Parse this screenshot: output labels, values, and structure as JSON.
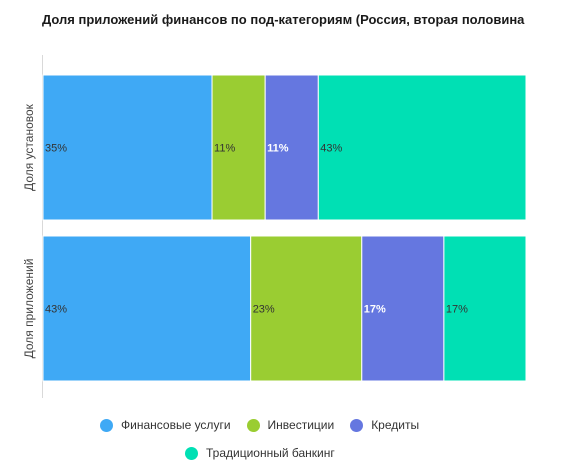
{
  "chart_data": {
    "type": "bar",
    "orientation": "horizontal",
    "stacked": "percent",
    "title": "Доля приложений финансов по под-категориям (Россия, вторая половина",
    "categories": [
      "Доля установок",
      "Доля приложений"
    ],
    "series": [
      {
        "name": "Финансовые услуги",
        "color": "#3fa9f5",
        "values": [
          35,
          43
        ],
        "labels": [
          "35%",
          "43%"
        ]
      },
      {
        "name": "Инвестиции",
        "color": "#9acd32",
        "values": [
          11,
          23
        ],
        "labels": [
          "11%",
          "23%"
        ]
      },
      {
        "name": "Кредиты",
        "color": "#6577e0",
        "values": [
          11,
          17
        ],
        "labels": [
          "11%",
          "17%"
        ]
      },
      {
        "name": "Традиционный банкинг",
        "color": "#00e0b4",
        "values": [
          43,
          17
        ],
        "labels": [
          "43%",
          "17%"
        ]
      }
    ],
    "xlim": [
      0,
      100
    ],
    "grid": false,
    "legend": "bottom"
  }
}
